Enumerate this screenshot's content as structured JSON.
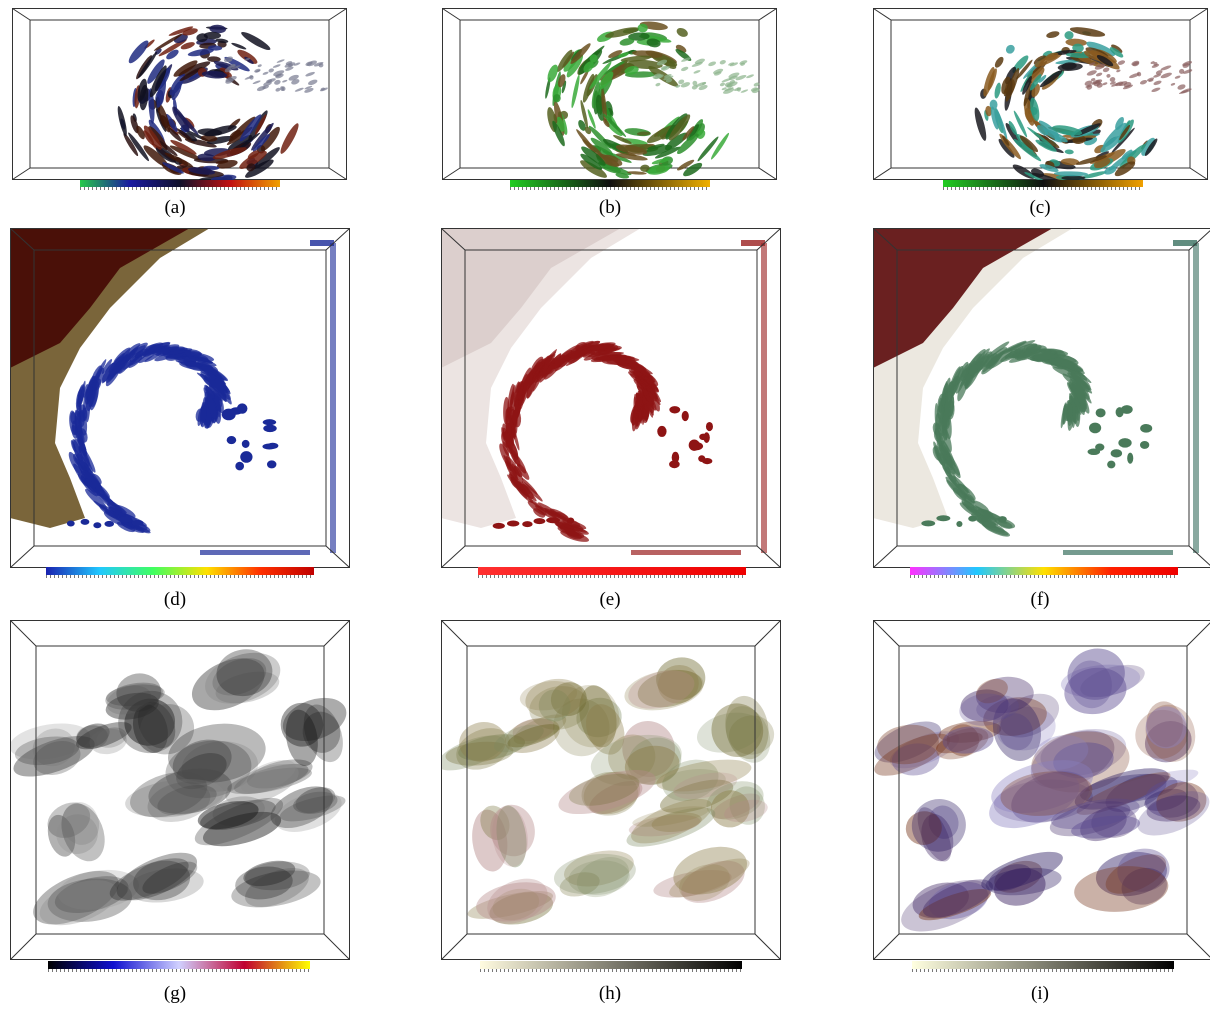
{
  "figure": {
    "panels": [
      {
        "id": "a",
        "caption": "(a)",
        "content": "volume-arcs",
        "colormap": [
          "#27c84a",
          "#1a1aa0",
          "#10102a",
          "#c01010",
          "#f0a000"
        ]
      },
      {
        "id": "b",
        "caption": "(b)",
        "content": "volume-arcs",
        "colormap": [
          "#22cc22",
          "#101010",
          "#f0b000"
        ]
      },
      {
        "id": "c",
        "caption": "(c)",
        "content": "volume-arcs",
        "colormap": [
          "#22cc22",
          "#101010",
          "#f0a000"
        ]
      },
      {
        "id": "d",
        "caption": "(d)",
        "content": "hurricane",
        "colormap": [
          "#1a22b0",
          "#20c8ff",
          "#40ff60",
          "#ffe000",
          "#ff3000",
          "#c00000"
        ]
      },
      {
        "id": "e",
        "caption": "(e)",
        "content": "hurricane",
        "colormap": [
          "#ff3030",
          "#ee0000"
        ]
      },
      {
        "id": "f",
        "caption": "(f)",
        "content": "hurricane",
        "colormap": [
          "#ff30ff",
          "#20c8ff",
          "#ffe000",
          "#ff2000",
          "#ee0000"
        ]
      },
      {
        "id": "g",
        "caption": "(g)",
        "content": "turbulence",
        "colormap": [
          "#000000",
          "#1010d0",
          "#d0d0ff",
          "#c00030",
          "#ffff00"
        ]
      },
      {
        "id": "h",
        "caption": "(h)",
        "content": "turbulence",
        "colormap": [
          "#fffbe0",
          "#000000"
        ]
      },
      {
        "id": "i",
        "caption": "(i)",
        "content": "turbulence",
        "colormap": [
          "#ffffe0",
          "#000000"
        ]
      }
    ]
  }
}
